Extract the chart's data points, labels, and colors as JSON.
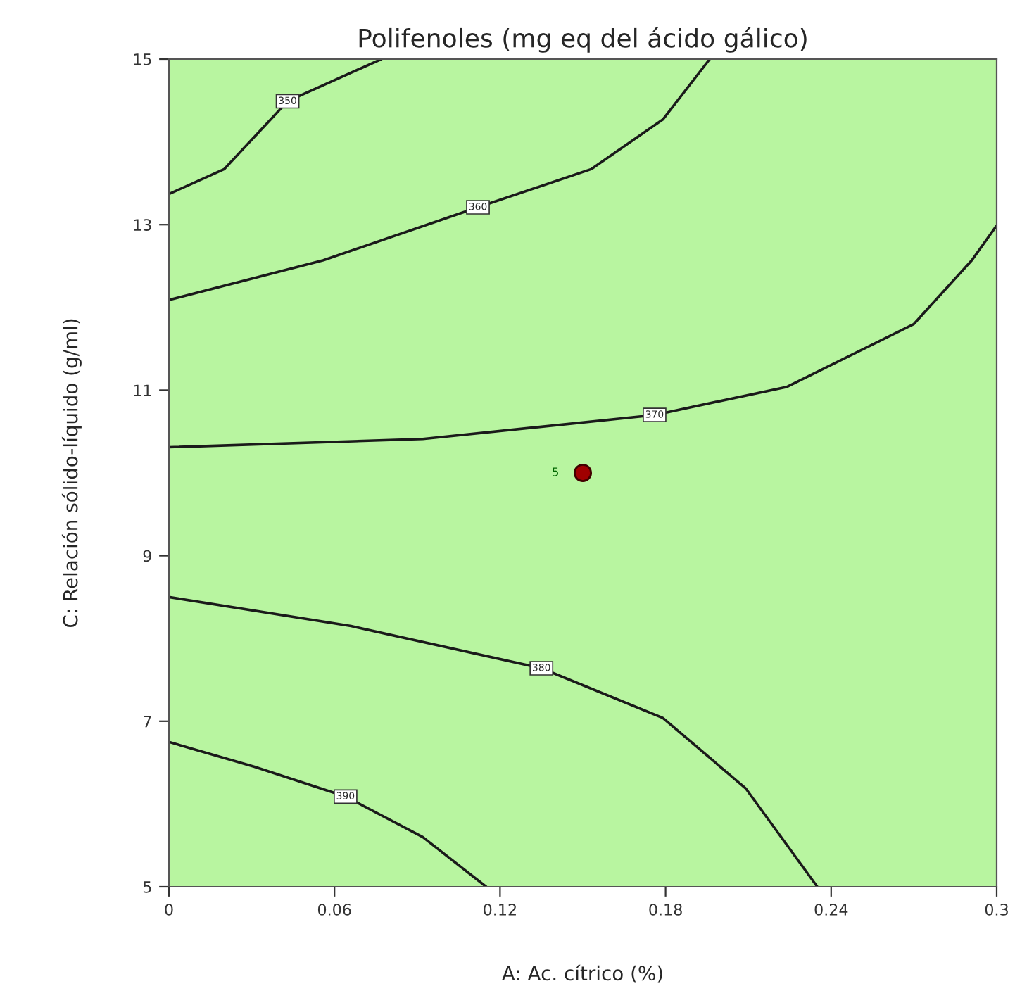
{
  "chart_data": {
    "type": "line",
    "title": "Polifenoles (mg eq del ácido gálico)",
    "xlabel": "A: Ac. cítrico (%)",
    "ylabel": "C: Relación sólido-líquido (g/ml)",
    "xlim": [
      0,
      0.3
    ],
    "ylim": [
      5,
      15
    ],
    "xticks": [
      0,
      0.06,
      0.12,
      0.18,
      0.24,
      0.3
    ],
    "yticks": [
      5,
      7,
      9,
      11,
      13,
      15
    ],
    "series": [
      {
        "color": "#1a1a1a",
        "x": [
          0,
          0.02,
          0.043,
          0.077
        ],
        "values": [
          13.37,
          13.67,
          14.49,
          15
        ]
      },
      {
        "color": "#1a1a1a",
        "x": [
          0,
          0.056,
          0.112,
          0.153,
          0.179,
          0.196
        ],
        "values": [
          12.09,
          12.57,
          13.21,
          13.67,
          14.27,
          15
        ]
      },
      {
        "color": "#1a1a1a",
        "x": [
          0,
          0.092,
          0.176,
          0.224,
          0.27,
          0.291,
          0.3
        ],
        "values": [
          10.31,
          10.41,
          10.7,
          11.04,
          11.8,
          12.57,
          12.99
        ]
      },
      {
        "color": "#1a1a1a",
        "x": [
          0,
          0.066,
          0.135,
          0.179,
          0.209,
          0.235
        ],
        "values": [
          8.5,
          8.15,
          7.64,
          7.04,
          6.19,
          5
        ]
      },
      {
        "color": "#1a1a1a",
        "x": [
          0,
          0.031,
          0.064,
          0.092,
          0.115
        ],
        "values": [
          6.75,
          6.45,
          6.09,
          5.6,
          5
        ]
      },
      {
        "type": "scatter",
        "marker": "circle",
        "color": "#a00000",
        "x": [
          0.15
        ],
        "values": [
          10
        ]
      }
    ],
    "annotations": [
      {
        "text": "350",
        "x": 0.043,
        "y": 14.49
      },
      {
        "text": "360",
        "x": 0.112,
        "y": 13.21
      },
      {
        "text": "370",
        "x": 0.176,
        "y": 10.7
      },
      {
        "text": "380",
        "x": 0.135,
        "y": 7.64
      },
      {
        "text": "390",
        "x": 0.064,
        "y": 6.09
      },
      {
        "text": "5",
        "x": 0.15,
        "y": 10
      }
    ],
    "legend": false,
    "marker": "none"
  }
}
